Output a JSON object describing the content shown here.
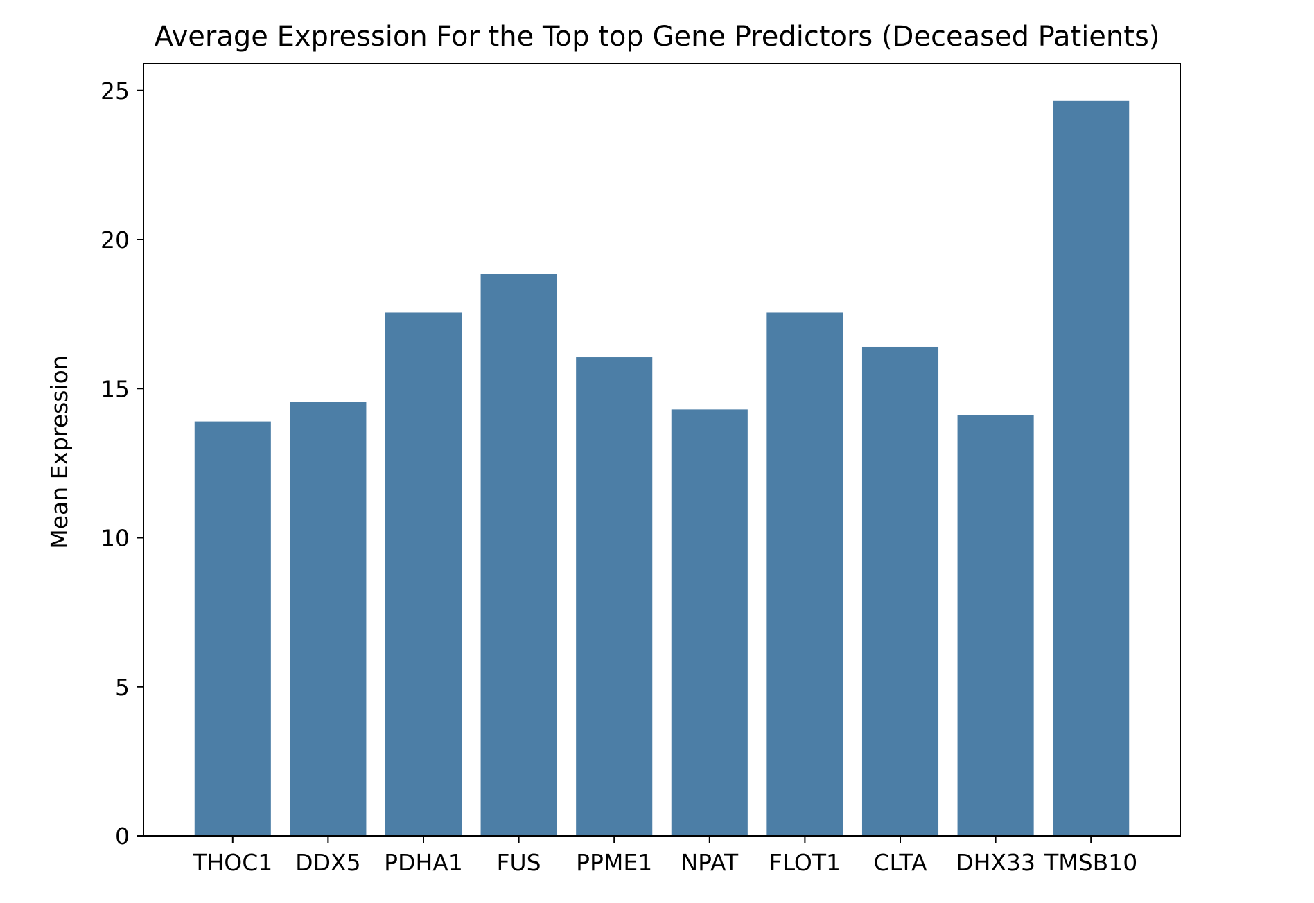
{
  "chart_data": {
    "type": "bar",
    "title": "Average Expression For the Top top Gene Predictors (Deceased Patients)",
    "xlabel": "",
    "ylabel": "Mean Expression",
    "categories": [
      "THOC1",
      "DDX5",
      "PDHA1",
      "FUS",
      "PPME1",
      "NPAT",
      "FLOT1",
      "CLTA",
      "DHX33",
      "TMSB10"
    ],
    "values": [
      13.9,
      14.55,
      17.55,
      18.85,
      16.05,
      14.3,
      17.55,
      16.4,
      14.1,
      24.65
    ],
    "ylim": [
      0,
      25.9
    ],
    "yticks": [
      0,
      5,
      10,
      15,
      20,
      25
    ],
    "grid": false,
    "legend": "none",
    "bar_color": "#4c7ea6"
  }
}
